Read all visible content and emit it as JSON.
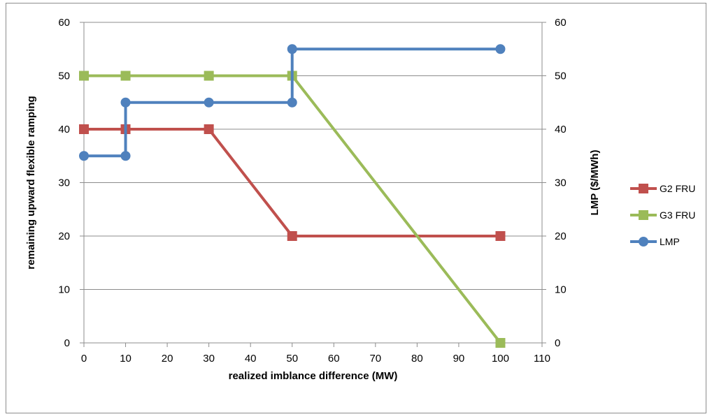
{
  "chart_data": {
    "type": "line",
    "title": "",
    "xlabel": "realized imblance difference (MW)",
    "ylabel_left": "remaining upward flexible ramping",
    "ylabel_right": "LMP ($/MWh)",
    "xlim": [
      0,
      110
    ],
    "ylim_left": [
      0,
      60
    ],
    "ylim_right": [
      0,
      60
    ],
    "x_ticks": [
      0,
      10,
      20,
      30,
      40,
      50,
      60,
      70,
      80,
      90,
      100,
      110
    ],
    "y_ticks_left": [
      0,
      10,
      20,
      30,
      40,
      50,
      60
    ],
    "y_ticks_right": [
      0,
      10,
      20,
      30,
      40,
      50,
      60
    ],
    "grid": "horizontal",
    "legend_position": "right",
    "series": [
      {
        "name": "G2 FRU",
        "color": "#c0504d",
        "marker": "square",
        "axis": "left",
        "points": [
          [
            0,
            40
          ],
          [
            10,
            40
          ],
          [
            30,
            40
          ],
          [
            50,
            20
          ],
          [
            100,
            20
          ]
        ]
      },
      {
        "name": "G3 FRU",
        "color": "#9bbb59",
        "marker": "square",
        "axis": "left",
        "points": [
          [
            0,
            50
          ],
          [
            10,
            50
          ],
          [
            30,
            50
          ],
          [
            50,
            50
          ],
          [
            100,
            0
          ]
        ]
      },
      {
        "name": "LMP",
        "color": "#4f81bd",
        "marker": "circle",
        "axis": "right",
        "points": [
          [
            0,
            35
          ],
          [
            10,
            35
          ],
          [
            10,
            45
          ],
          [
            30,
            45
          ],
          [
            50,
            45
          ],
          [
            50,
            55
          ],
          [
            100,
            55
          ]
        ]
      }
    ]
  }
}
